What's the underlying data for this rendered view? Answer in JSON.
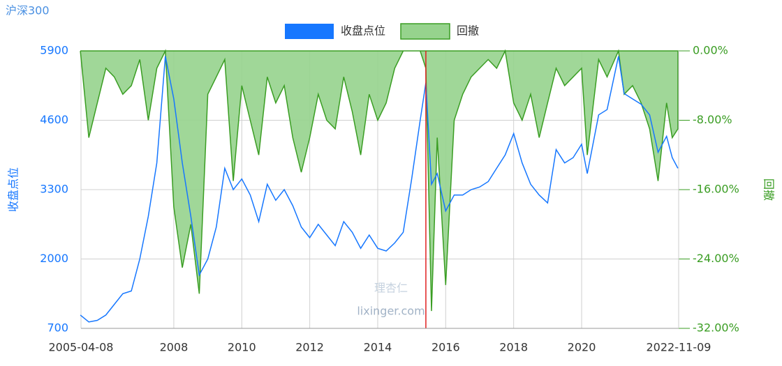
{
  "chart_data": {
    "type": "line",
    "title": "沪深300",
    "y_label": "收盘点位",
    "y2_label": "回撤",
    "x": [
      "2005-04",
      "2005-07",
      "2005-10",
      "2006-01",
      "2006-04",
      "2006-07",
      "2006-10",
      "2007-01",
      "2007-04",
      "2007-07",
      "2007-10",
      "2008-01",
      "2008-04",
      "2008-07",
      "2008-10",
      "2009-01",
      "2009-04",
      "2009-07",
      "2009-10",
      "2010-01",
      "2010-04",
      "2010-07",
      "2010-10",
      "2011-01",
      "2011-04",
      "2011-07",
      "2011-10",
      "2012-01",
      "2012-04",
      "2012-07",
      "2012-10",
      "2013-01",
      "2013-04",
      "2013-07",
      "2013-10",
      "2014-01",
      "2014-04",
      "2014-07",
      "2014-10",
      "2015-01",
      "2015-04",
      "2015-06",
      "2015-08",
      "2015-10",
      "2016-01",
      "2016-04",
      "2016-07",
      "2016-10",
      "2017-01",
      "2017-04",
      "2017-07",
      "2017-10",
      "2018-01",
      "2018-04",
      "2018-07",
      "2018-10",
      "2019-01",
      "2019-04",
      "2019-07",
      "2019-10",
      "2020-01",
      "2020-03",
      "2020-07",
      "2020-10",
      "2021-02",
      "2021-04",
      "2021-07",
      "2021-10",
      "2022-01",
      "2022-04",
      "2022-07",
      "2022-09",
      "2022-11"
    ],
    "series": [
      {
        "name": "收盘点位",
        "color": "#1677ff",
        "values": [
          950,
          820,
          850,
          950,
          1150,
          1350,
          1400,
          2000,
          2800,
          3800,
          5800,
          5000,
          3800,
          2800,
          1700,
          2000,
          2600,
          3700,
          3300,
          3500,
          3200,
          2700,
          3400,
          3100,
          3300,
          3000,
          2600,
          2400,
          2650,
          2450,
          2250,
          2700,
          2500,
          2200,
          2450,
          2200,
          2150,
          2300,
          2500,
          3500,
          4600,
          5300,
          3400,
          3600,
          2900,
          3200,
          3200,
          3300,
          3350,
          3450,
          3700,
          3950,
          4350,
          3800,
          3400,
          3200,
          3050,
          4050,
          3800,
          3900,
          4150,
          3600,
          4700,
          4800,
          5800,
          5100,
          5000,
          4900,
          4700,
          4000,
          4300,
          3900,
          3700
        ]
      },
      {
        "name": "回撤",
        "color": "#3a9d23",
        "fill": "#96d38d",
        "axis": "y2",
        "values": [
          0,
          -10,
          -6,
          -2,
          -3,
          -5,
          -4,
          -1,
          -8,
          -2,
          0,
          -18,
          -25,
          -20,
          -28,
          -5,
          -3,
          -1,
          -15,
          -4,
          -8,
          -12,
          -3,
          -6,
          -4,
          -10,
          -14,
          -10,
          -5,
          -8,
          -9,
          -3,
          -7,
          -12,
          -5,
          -8,
          -6,
          -2,
          0,
          0,
          0,
          -2,
          -30,
          -10,
          -27,
          -8,
          -5,
          -3,
          -2,
          -1,
          -2,
          0,
          -6,
          -8,
          -5,
          -10,
          -6,
          -2,
          -4,
          -3,
          -2,
          -12,
          -1,
          -3,
          0,
          -5,
          -4,
          -6,
          -9,
          -15,
          -6,
          -10,
          -9
        ]
      }
    ],
    "xlim": [
      "2005-04-08",
      "2022-11-09"
    ],
    "xticks": [
      "2005-04-08",
      "2008",
      "2010",
      "2012",
      "2014",
      "2016",
      "2018",
      "2020",
      "2022-11-09"
    ],
    "ylim": [
      700,
      5900
    ],
    "yticks": [
      700,
      2000,
      3300,
      4600,
      5900
    ],
    "y2lim": [
      -32,
      0
    ],
    "y2ticks": [
      {
        "value": -32,
        "label": "-32.00%"
      },
      {
        "value": -24,
        "label": "-24.00%"
      },
      {
        "value": -16,
        "label": "-16.00%"
      },
      {
        "value": -8,
        "label": "-8.00%"
      },
      {
        "value": 0,
        "label": "0.00%"
      }
    ],
    "grid": true,
    "vline": {
      "x": "2015-06",
      "color": "#e02020"
    },
    "watermark": [
      "理杏仁",
      "lixinger.com"
    ]
  }
}
